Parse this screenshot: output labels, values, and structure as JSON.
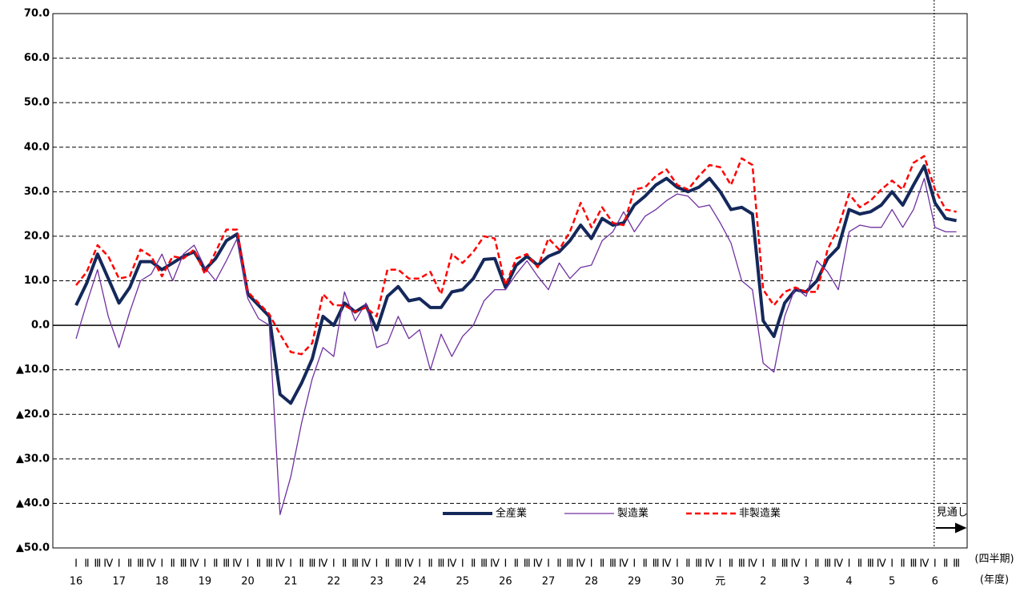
{
  "chart_data": {
    "type": "line",
    "categories": [
      "Ⅰ",
      "Ⅱ",
      "Ⅲ",
      "Ⅳ",
      "Ⅰ",
      "Ⅱ",
      "Ⅲ",
      "Ⅳ",
      "Ⅰ",
      "Ⅱ",
      "Ⅲ",
      "Ⅳ",
      "Ⅰ",
      "Ⅱ",
      "Ⅲ",
      "Ⅳ",
      "Ⅰ",
      "Ⅱ",
      "Ⅲ",
      "Ⅳ",
      "Ⅰ",
      "Ⅱ",
      "Ⅲ",
      "Ⅳ",
      "Ⅰ",
      "Ⅱ",
      "Ⅲ",
      "Ⅳ",
      "Ⅰ",
      "Ⅱ",
      "Ⅲ",
      "Ⅳ",
      "Ⅰ",
      "Ⅱ",
      "Ⅲ",
      "Ⅳ",
      "Ⅰ",
      "Ⅱ",
      "Ⅲ",
      "Ⅳ",
      "Ⅰ",
      "Ⅱ",
      "Ⅲ",
      "Ⅳ",
      "Ⅰ",
      "Ⅱ",
      "Ⅲ",
      "Ⅳ",
      "Ⅰ",
      "Ⅱ",
      "Ⅲ",
      "Ⅳ",
      "Ⅰ",
      "Ⅱ",
      "Ⅲ",
      "Ⅳ",
      "Ⅰ",
      "Ⅱ",
      "Ⅲ",
      "Ⅳ",
      "Ⅰ",
      "Ⅱ",
      "Ⅲ",
      "Ⅳ",
      "Ⅰ",
      "Ⅱ",
      "Ⅲ",
      "Ⅳ",
      "Ⅰ",
      "Ⅱ",
      "Ⅲ",
      "Ⅳ",
      "Ⅰ",
      "Ⅱ",
      "Ⅲ",
      "Ⅳ",
      "Ⅰ",
      "Ⅱ",
      "Ⅲ",
      "Ⅳ",
      "Ⅰ",
      "Ⅱ",
      "Ⅲ"
    ],
    "years": [
      "16",
      "17",
      "18",
      "19",
      "20",
      "21",
      "22",
      "23",
      "24",
      "25",
      "26",
      "27",
      "28",
      "29",
      "30",
      "元",
      "2",
      "3",
      "4",
      "5",
      "6"
    ],
    "x_label_quarter": "(四半期)",
    "x_label_year": "(年度)",
    "annotation": "見通し",
    "series": [
      {
        "name": "全産業",
        "color": "#14285a",
        "width": 4,
        "dash": false,
        "values": [
          4.5,
          9.5,
          16,
          10.5,
          5,
          8.5,
          14.3,
          14.3,
          12.5,
          14,
          15.5,
          16.5,
          12.5,
          15,
          19,
          20.5,
          7,
          4.5,
          2,
          -15.5,
          -17.5,
          -13,
          -7.5,
          2,
          0,
          5,
          3,
          4.5,
          -1,
          6.5,
          8.7,
          5.5,
          6,
          4,
          4,
          7.5,
          8,
          10.5,
          14.8,
          15,
          8.5,
          13.5,
          15.5,
          13.5,
          15.5,
          16.5,
          19,
          22.5,
          19.5,
          24,
          22.5,
          23,
          27,
          29,
          31.5,
          33,
          31,
          30,
          31,
          33,
          30,
          26,
          26.5,
          25,
          1,
          -2.5,
          5,
          8,
          7.5,
          10,
          15,
          17.5,
          26,
          25,
          25.5,
          27,
          30,
          27,
          31.5,
          35.8,
          27.5,
          24,
          23.5
        ]
      },
      {
        "name": "製造業",
        "color": "#7030a0",
        "width": 1.3,
        "dash": false,
        "values": [
          -3,
          5,
          12.5,
          2,
          -5,
          3,
          10,
          11.5,
          16,
          10,
          16,
          18,
          13,
          10,
          14.5,
          19.5,
          6,
          1.5,
          0,
          -42.5,
          -34,
          -22,
          -12,
          -5,
          -7,
          7.5,
          1,
          5,
          -5,
          -4,
          2,
          -3,
          -1,
          -10,
          -2,
          -7,
          -2.5,
          0,
          5.5,
          8,
          8,
          11.5,
          14.5,
          11,
          8,
          14,
          10.5,
          13,
          13.5,
          19,
          21,
          25.5,
          21,
          24.5,
          26,
          28,
          29.5,
          29,
          26.5,
          27,
          23,
          18.5,
          10,
          8,
          -8.5,
          -10.5,
          2,
          8.5,
          6.5,
          14.5,
          12,
          8,
          21,
          22.5,
          22,
          22,
          26,
          22,
          26,
          33,
          22,
          21,
          21
        ]
      },
      {
        "name": "非製造業",
        "color": "#ff0000",
        "width": 2.5,
        "dash": true,
        "values": [
          9,
          12,
          18,
          15.5,
          10.5,
          11,
          17,
          15.5,
          11,
          15.5,
          15,
          17,
          11.5,
          16.5,
          21.5,
          21.5,
          7.5,
          5,
          2.5,
          -2,
          -6,
          -6.5,
          -4,
          7,
          4.5,
          4.5,
          3,
          4,
          2,
          12.5,
          12.5,
          10.5,
          10.5,
          12,
          7,
          16,
          14,
          16.5,
          20,
          19.5,
          9,
          15,
          16,
          13,
          19.5,
          17,
          21,
          27.5,
          22,
          26.5,
          23,
          22.5,
          30.5,
          31,
          33.5,
          35,
          31.5,
          30.5,
          33.5,
          36,
          35.5,
          31.5,
          37.5,
          36,
          8,
          4.5,
          7.5,
          8.5,
          7.5,
          7.5,
          17,
          22,
          29.5,
          26.5,
          28,
          30.5,
          32.5,
          30.5,
          36.5,
          38,
          30.5,
          26,
          25.5
        ]
      }
    ],
    "ylim": [
      -50,
      70
    ],
    "yticks": [
      {
        "value": -50,
        "label": "▲50.0"
      },
      {
        "value": -40,
        "label": "▲40.0"
      },
      {
        "value": -30,
        "label": "▲30.0"
      },
      {
        "value": -20,
        "label": "▲20.0"
      },
      {
        "value": -10,
        "label": "▲10.0"
      },
      {
        "value": 0,
        "label": "0.0"
      },
      {
        "value": 10,
        "label": "10.0"
      },
      {
        "value": 20,
        "label": "20.0"
      },
      {
        "value": 30,
        "label": "30.0"
      },
      {
        "value": 40,
        "label": "40.0"
      },
      {
        "value": 50,
        "label": "50.0"
      },
      {
        "value": 60,
        "label": "60.0"
      },
      {
        "value": 70,
        "label": "70.0"
      }
    ],
    "grid": true
  }
}
